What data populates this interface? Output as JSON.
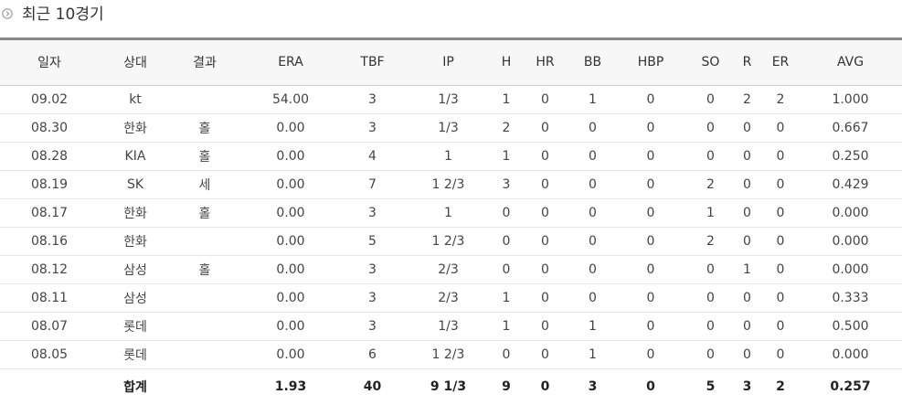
{
  "title": "최근 10경기",
  "columns": [
    "일자",
    "상대",
    "결과",
    "ERA",
    "TBF",
    "IP",
    "H",
    "HR",
    "BB",
    "HBP",
    "SO",
    "R",
    "ER",
    "AVG"
  ],
  "rows": [
    [
      "09.02",
      "kt",
      "",
      "54.00",
      "3",
      "1/3",
      "1",
      "0",
      "1",
      "0",
      "0",
      "2",
      "2",
      "1.000"
    ],
    [
      "08.30",
      "한화",
      "홀",
      "0.00",
      "3",
      "1/3",
      "2",
      "0",
      "0",
      "0",
      "0",
      "0",
      "0",
      "0.667"
    ],
    [
      "08.28",
      "KIA",
      "홀",
      "0.00",
      "4",
      "1",
      "1",
      "0",
      "0",
      "0",
      "0",
      "0",
      "0",
      "0.250"
    ],
    [
      "08.19",
      "SK",
      "세",
      "0.00",
      "7",
      "1 2/3",
      "3",
      "0",
      "0",
      "0",
      "2",
      "0",
      "0",
      "0.429"
    ],
    [
      "08.17",
      "한화",
      "홀",
      "0.00",
      "3",
      "1",
      "0",
      "0",
      "0",
      "0",
      "1",
      "0",
      "0",
      "0.000"
    ],
    [
      "08.16",
      "한화",
      "",
      "0.00",
      "5",
      "1 2/3",
      "0",
      "0",
      "0",
      "0",
      "2",
      "0",
      "0",
      "0.000"
    ],
    [
      "08.12",
      "삼성",
      "홀",
      "0.00",
      "3",
      "2/3",
      "0",
      "0",
      "0",
      "0",
      "0",
      "1",
      "0",
      "0.000"
    ],
    [
      "08.11",
      "삼성",
      "",
      "0.00",
      "3",
      "2/3",
      "1",
      "0",
      "0",
      "0",
      "0",
      "0",
      "0",
      "0.333"
    ],
    [
      "08.07",
      "롯데",
      "",
      "0.00",
      "3",
      "1/3",
      "1",
      "0",
      "1",
      "0",
      "0",
      "0",
      "0",
      "0.500"
    ],
    [
      "08.05",
      "롯데",
      "",
      "0.00",
      "6",
      "1 2/3",
      "0",
      "0",
      "1",
      "0",
      "0",
      "0",
      "0",
      "0.000"
    ]
  ],
  "total": [
    "",
    "합계",
    "",
    "1.93",
    "40",
    "9 1/3",
    "9",
    "0",
    "3",
    "0",
    "5",
    "3",
    "2",
    "0.257"
  ],
  "icon": "circle-arrow-right-icon",
  "colors": {
    "header_bg": "#f7f7f7",
    "top_line": "#888888"
  }
}
